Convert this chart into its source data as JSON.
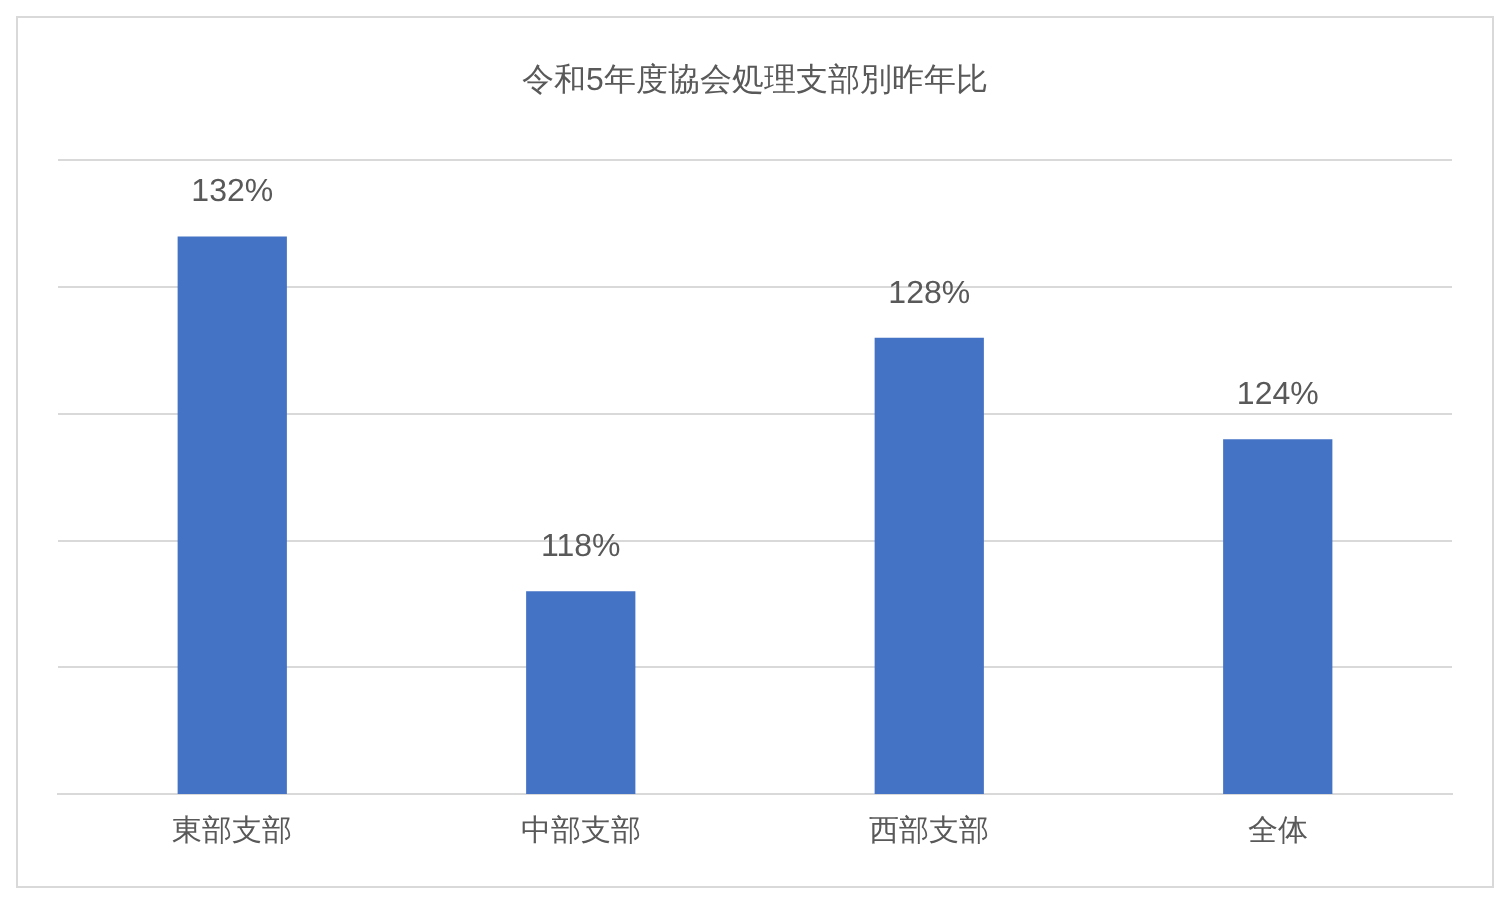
{
  "chart_data": {
    "type": "bar",
    "title": "令和5年度協会処理支部別昨年比",
    "categories": [
      "東部支部",
      "中部支部",
      "西部支部",
      "全体"
    ],
    "values": [
      132,
      118,
      128,
      124
    ],
    "color": "#4472c4",
    "value_labels": [
      "132%",
      "118%",
      "128%",
      "124%"
    ],
    "ylim": [
      110,
      135
    ],
    "yticks": [
      110,
      115,
      120,
      125,
      130,
      135
    ],
    "grid": "y",
    "tick_labels": "x"
  }
}
